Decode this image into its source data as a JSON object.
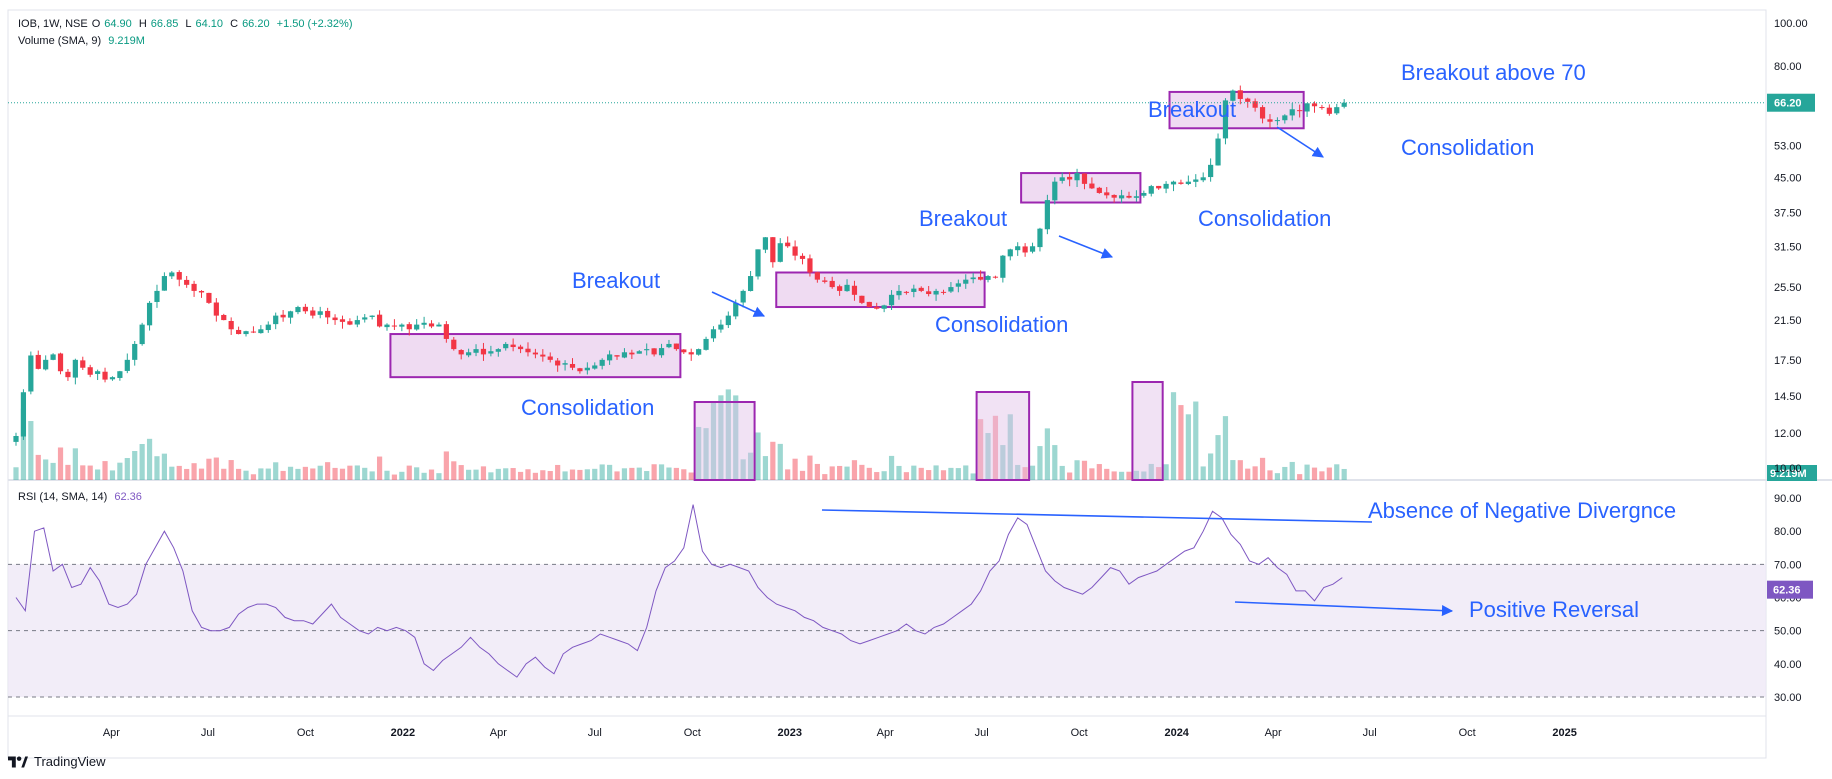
{
  "header": {
    "symbol": "IOB, 1W, NSE",
    "open_label": "O",
    "open": "64.90",
    "high_label": "H",
    "high": "66.85",
    "low_label": "L",
    "low": "64.10",
    "close_label": "C",
    "close": "66.20",
    "change": "+1.50 (+2.32%)",
    "volume_label": "Volume (SMA, 9)",
    "volume_value": "9.219M",
    "rsi_label": "RSI (14, SMA, 14)",
    "rsi_value": "62.36"
  },
  "brand": {
    "name": "TradingView"
  },
  "colors": {
    "up": "#26a69a",
    "down": "#f23645",
    "rsi": "#7e57c2",
    "annotation": "#2962ff",
    "box": "#9c27b0"
  },
  "chart_data": [
    {
      "type": "candlestick",
      "title": "IOB, 1W, NSE",
      "time_axis": [
        "Apr",
        "Jul",
        "Oct",
        "2022",
        "Apr",
        "Jul",
        "Oct",
        "2023",
        "Apr",
        "Jul",
        "Oct",
        "2024",
        "Apr",
        "Jul",
        "Oct",
        "2025"
      ],
      "price_axis": [
        "100.00",
        "80.00",
        "66.20",
        "53.00",
        "45.00",
        "37.50",
        "31.50",
        "25.50",
        "21.50",
        "17.50",
        "14.50",
        "12.00",
        "10.00"
      ],
      "scale": "log",
      "last_price": "66.20",
      "last_volume": "9.219M",
      "x_start": "2021-01-01",
      "weekly_close": [
        11.8,
        14.8,
        17.9,
        16.7,
        17.5,
        18.0,
        16.5,
        16.0,
        17.5,
        16.8,
        16.2,
        16.5,
        15.8,
        16.0,
        16.5,
        17.5,
        19.0,
        21.0,
        23.5,
        25.0,
        27.0,
        27.5,
        26.5,
        25.8,
        25.0,
        24.8,
        23.5,
        22.0,
        21.5,
        20.5,
        20.0,
        20.3,
        20.2,
        20.5,
        21.0,
        22.0,
        21.8,
        22.5,
        23.0,
        22.5,
        22.0,
        22.5,
        21.8,
        21.5,
        21.3,
        21.0,
        21.5,
        21.8,
        22.0,
        20.8,
        21.0,
        20.8,
        21.0,
        20.5,
        21.0,
        21.2,
        20.8,
        21.0,
        19.5,
        18.5,
        18.0,
        18.2,
        18.5,
        18.0,
        18.3,
        18.5,
        19.0,
        18.7,
        18.5,
        18.2,
        18.0,
        17.8,
        17.5,
        17.0,
        17.2,
        16.8,
        16.5,
        16.8,
        17.0,
        17.5,
        18.0,
        17.8,
        18.2,
        18.0,
        18.3,
        18.5,
        18.0,
        18.6,
        19.0,
        18.5,
        18.2,
        18.0,
        18.5,
        19.5,
        20.5,
        21.0,
        22.0,
        23.5,
        25.0,
        27.0,
        31.0,
        33.0,
        29.0,
        32.0,
        31.5,
        30.0,
        29.5,
        27.5,
        26.5,
        26.2,
        25.5,
        25.0,
        25.8,
        24.5,
        23.5,
        23.0,
        22.8,
        23.2,
        24.5,
        25.0,
        24.8,
        25.3,
        25.0,
        24.6,
        25.0,
        24.8,
        25.5,
        26.0,
        26.5,
        26.8,
        26.5,
        27.0,
        26.8,
        30.0,
        31.0,
        31.5,
        30.5,
        31.5,
        34.5,
        40.0,
        44.0,
        45.0,
        44.5,
        46.0,
        43.5,
        42.5,
        41.5,
        41.0,
        40.5,
        41.0,
        40.5,
        40.8,
        41.5,
        43.0,
        42.5,
        43.5,
        44.0,
        43.5,
        44.0,
        44.5,
        45.0,
        48.0,
        55.0,
        67.0,
        70.5,
        67.5,
        66.5,
        64.5,
        61.0,
        60.0,
        60.5,
        62.0,
        64.0,
        63.5,
        66.0,
        65.0,
        64.5,
        62.5,
        64.7,
        66.2
      ]
    },
    {
      "type": "bar",
      "title": "Volume (SMA, 9)",
      "last_value": "9.219M"
    },
    {
      "type": "line",
      "title": "RSI (14, SMA, 14)",
      "y_axis": [
        "90.00",
        "80.00",
        "70.00",
        "60.00",
        "50.00",
        "40.00",
        "30.00"
      ],
      "bands": [
        70,
        50,
        30
      ],
      "last_value": "62.36",
      "values": [
        60,
        56,
        80,
        81,
        68,
        70,
        63,
        64,
        69,
        65,
        58,
        57,
        58,
        61,
        70,
        75,
        80,
        75,
        68,
        56,
        51,
        50,
        50,
        51,
        55,
        57,
        58,
        58,
        57,
        54,
        53,
        53,
        52,
        55,
        58,
        54,
        52,
        50,
        49,
        51,
        50,
        51,
        50,
        48,
        40,
        38,
        41,
        43,
        45,
        48,
        45,
        43,
        40,
        38,
        36,
        40,
        42,
        39,
        37,
        43,
        45,
        46,
        47,
        49,
        48,
        47,
        46,
        44,
        51,
        62,
        69,
        71,
        75,
        88,
        74,
        70,
        69,
        70,
        69,
        68,
        63,
        60,
        58,
        57,
        56,
        54,
        53,
        51,
        50,
        49,
        47,
        46,
        47,
        48,
        49,
        50,
        52,
        50,
        49,
        51,
        52,
        54,
        56,
        58,
        62,
        68,
        71,
        79,
        84,
        82,
        75,
        68,
        65,
        63,
        62,
        61,
        63,
        66,
        69,
        68,
        64,
        66,
        67,
        68,
        70,
        72,
        74,
        75,
        80,
        86,
        84,
        79,
        76,
        71,
        70,
        72,
        69,
        67,
        62,
        62,
        59,
        63,
        64,
        66
      ],
      "annotations": [
        "Absence of Negative Divergnce",
        "Positive Reversal"
      ]
    }
  ],
  "annotations": {
    "breakout_1": "Breakout",
    "consolidation_1": "Consolidation",
    "breakout_2": "Breakout",
    "consolidation_2": "Consolidation",
    "breakout_3": "Breakout",
    "consolidation_3": "Consolidation",
    "breakout_4": "Breakout above 70",
    "consolidation_4": "Consolidation",
    "rsi_top": "Absence of Negative Divergnce",
    "rsi_bottom": "Positive Reversal"
  }
}
